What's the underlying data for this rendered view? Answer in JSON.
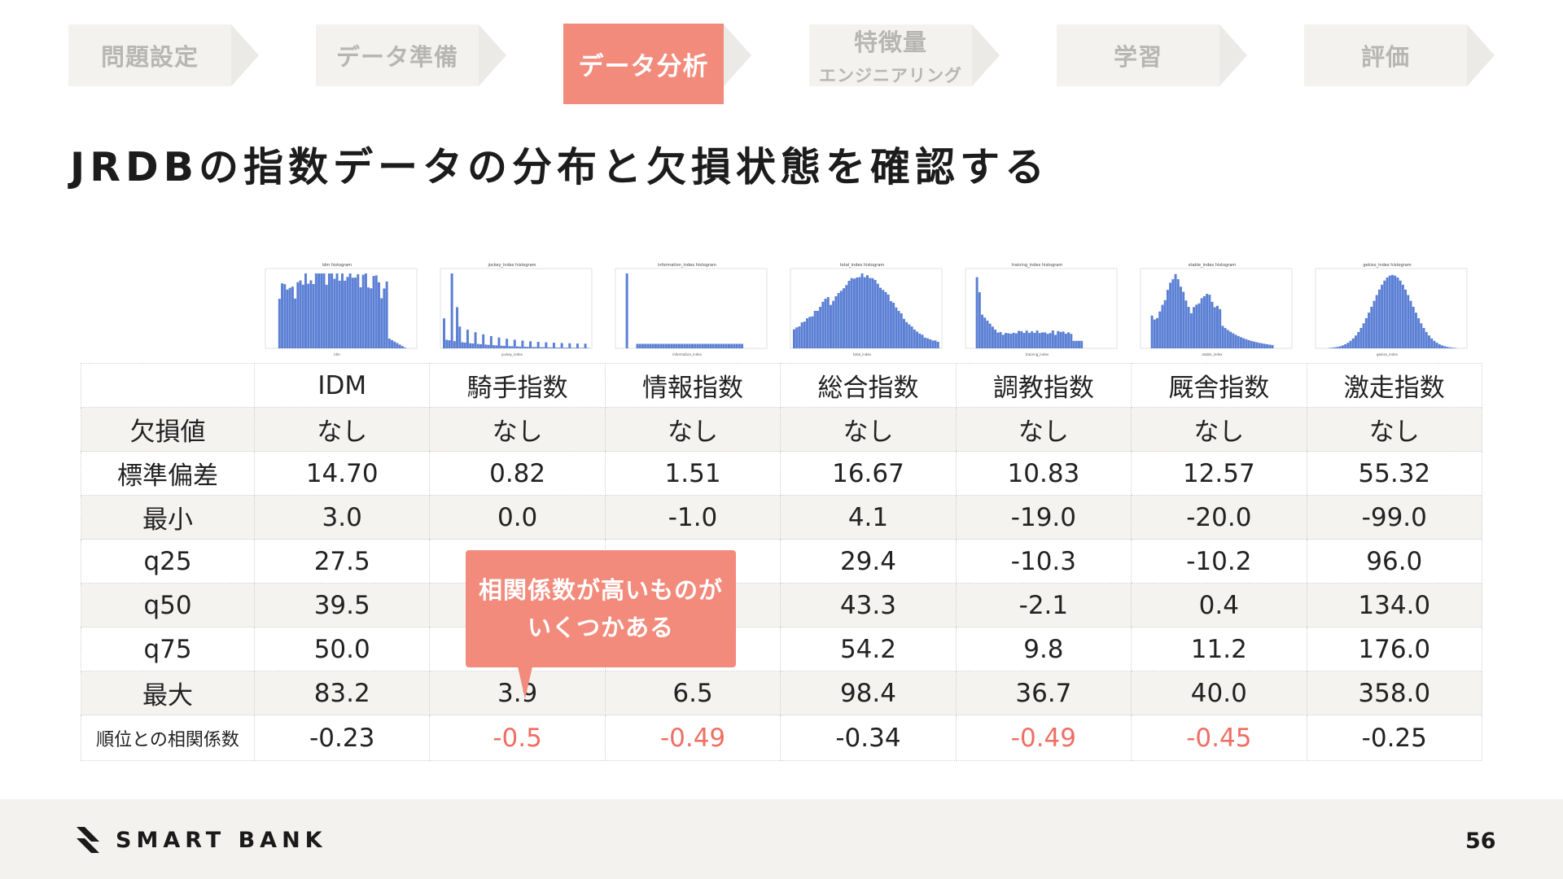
{
  "steps": [
    {
      "label": "問題設定",
      "sub": ""
    },
    {
      "label": "データ準備",
      "sub": ""
    },
    {
      "label": "データ分析",
      "sub": ""
    },
    {
      "label": "特徴量",
      "sub": "エンジニアリング"
    },
    {
      "label": "学習",
      "sub": ""
    },
    {
      "label": "評価",
      "sub": ""
    }
  ],
  "active_step": "データ分析",
  "title": "JRDBの指数データの分布と欠損状態を確認する",
  "histograms": [
    {
      "title": "idm histogram",
      "xlabel": "idm",
      "shape": "idm"
    },
    {
      "title": "jockey_index histogram",
      "xlabel": "jockey_index",
      "shape": "jockey"
    },
    {
      "title": "information_index histogram",
      "xlabel": "information_index",
      "shape": "information"
    },
    {
      "title": "total_index histogram",
      "xlabel": "total_index",
      "shape": "total"
    },
    {
      "title": "training_index histogram",
      "xlabel": "training_index",
      "shape": "training"
    },
    {
      "title": "stable_index histogram",
      "xlabel": "stable_index",
      "shape": "stable"
    },
    {
      "title": "gekiso_index histogram",
      "xlabel": "gekiso_index",
      "shape": "gekiso"
    }
  ],
  "table": {
    "columns": [
      "IDM",
      "騎手指数",
      "情報指数",
      "総合指数",
      "調教指数",
      "厩舎指数",
      "激走指数"
    ],
    "rows": [
      {
        "label": "欠損値",
        "values": [
          "なし",
          "なし",
          "なし",
          "なし",
          "なし",
          "なし",
          "なし"
        ]
      },
      {
        "label": "標準偏差",
        "values": [
          "14.70",
          "0.82",
          "1.51",
          "16.67",
          "10.83",
          "12.57",
          "55.32"
        ]
      },
      {
        "label": "最小",
        "values": [
          "3.0",
          "0.0",
          "-1.0",
          "4.1",
          "-19.0",
          "-20.0",
          "-99.0"
        ]
      },
      {
        "label": "q25",
        "values": [
          "27.5",
          "",
          "",
          "29.4",
          "-10.3",
          "-10.2",
          "96.0"
        ]
      },
      {
        "label": "q50",
        "values": [
          "39.5",
          "",
          "",
          "43.3",
          "-2.1",
          "0.4",
          "134.0"
        ]
      },
      {
        "label": "q75",
        "values": [
          "50.0",
          "",
          "",
          "54.2",
          "9.8",
          "11.2",
          "176.0"
        ]
      },
      {
        "label": "最大",
        "values": [
          "83.2",
          "3.9",
          "6.5",
          "98.4",
          "36.7",
          "40.0",
          "358.0"
        ]
      },
      {
        "label": "順位との相関係数",
        "values": [
          "-0.23",
          "-0.5",
          "-0.49",
          "-0.34",
          "-0.49",
          "-0.45",
          "-0.25"
        ],
        "highlight": [
          false,
          true,
          true,
          false,
          true,
          true,
          false
        ]
      }
    ]
  },
  "callout": {
    "line1": "相関係数が高いものが",
    "line2": "いくつかある"
  },
  "footer": {
    "brand": "SMART BANK",
    "page": "56"
  },
  "colors": {
    "accent": "#f28b7b",
    "highlight_text": "#ef6e63",
    "bar": "#5b7fd4",
    "step_bg": "#f3f2ef",
    "footer_bg": "#f4f2ee"
  }
}
